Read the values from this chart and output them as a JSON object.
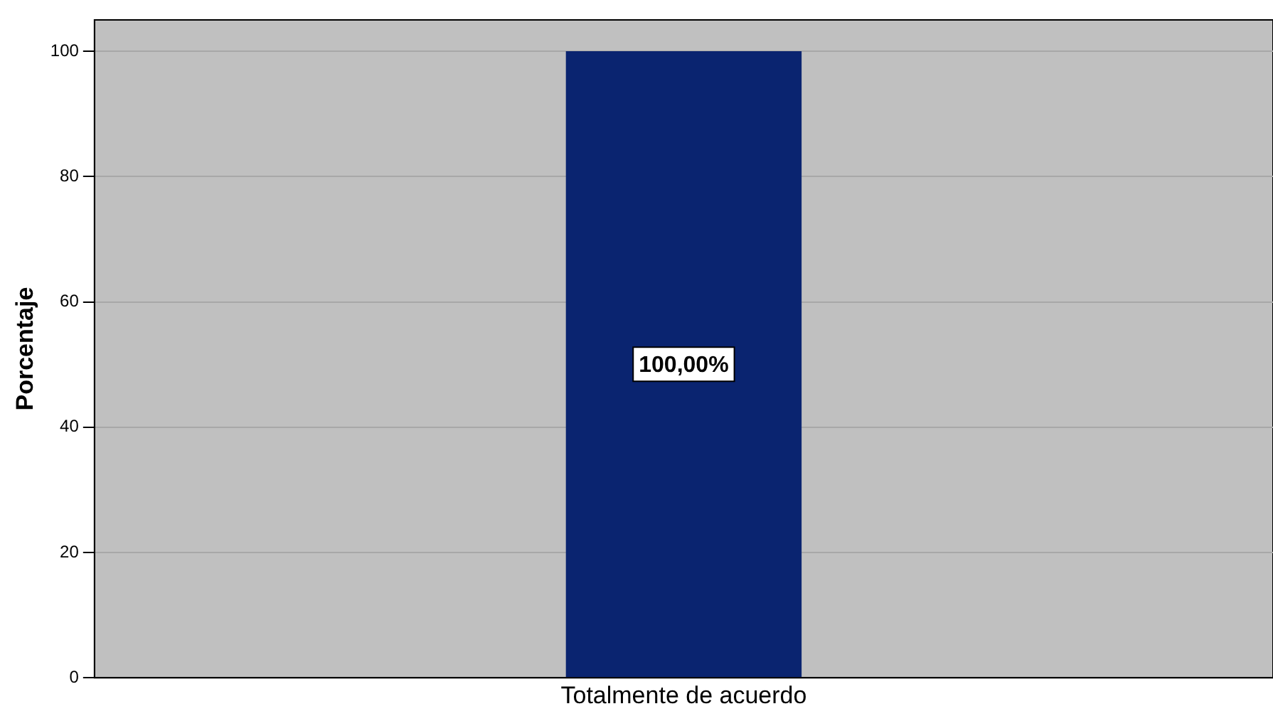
{
  "chart_data": {
    "type": "bar",
    "ylabel": "Porcentaje",
    "categories": [
      "Totalmente de acuerdo"
    ],
    "values": [
      100
    ],
    "color": "#0a2470",
    "value_labels": [
      "100,00%"
    ],
    "ylim": [
      0,
      105
    ],
    "yticks": [
      0,
      20,
      40,
      60,
      80,
      100
    ],
    "grid": "y",
    "legend": false
  }
}
